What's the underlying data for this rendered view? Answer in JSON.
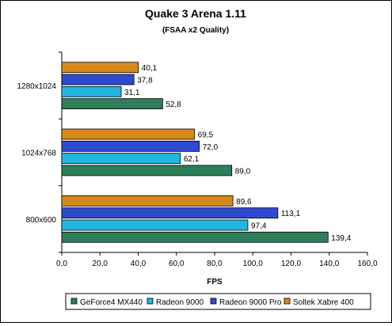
{
  "chart_data": {
    "type": "bar",
    "orientation": "horizontal",
    "title": "Quake 3 Arena 1.11",
    "subtitle": "(FSAA x2 Quality)",
    "xlabel": "FPS",
    "ylabel": "",
    "xlim": [
      0,
      160
    ],
    "x_ticks": [
      "0,0",
      "20,0",
      "40,0",
      "60,0",
      "80,0",
      "100,0",
      "120,0",
      "140,0",
      "160,0"
    ],
    "tick_step": 20,
    "categories": [
      "1280x1024",
      "1024x768",
      "800x600"
    ],
    "series": [
      {
        "name": "GeForce4 MX440",
        "color": "#2e7d5b",
        "values": [
          52.8,
          89.0,
          139.4
        ],
        "labels": [
          "52,8",
          "89,0",
          "139,4"
        ]
      },
      {
        "name": "Radeon 9000",
        "color": "#20b6e0",
        "values": [
          31.1,
          62.1,
          97.4
        ],
        "labels": [
          "31,1",
          "62,1",
          "97,4"
        ]
      },
      {
        "name": "Radeon 9000 Pro",
        "color": "#2f49cf",
        "values": [
          37.8,
          72.0,
          113.1
        ],
        "labels": [
          "37,8",
          "72,0",
          "113,1"
        ]
      },
      {
        "name": "Soltek Xabre 400",
        "color": "#d68a1c",
        "values": [
          40.1,
          69.5,
          89.6
        ],
        "labels": [
          "40,1",
          "69,5",
          "89,6"
        ]
      }
    ],
    "grid": false,
    "legend_position": "bottom"
  }
}
